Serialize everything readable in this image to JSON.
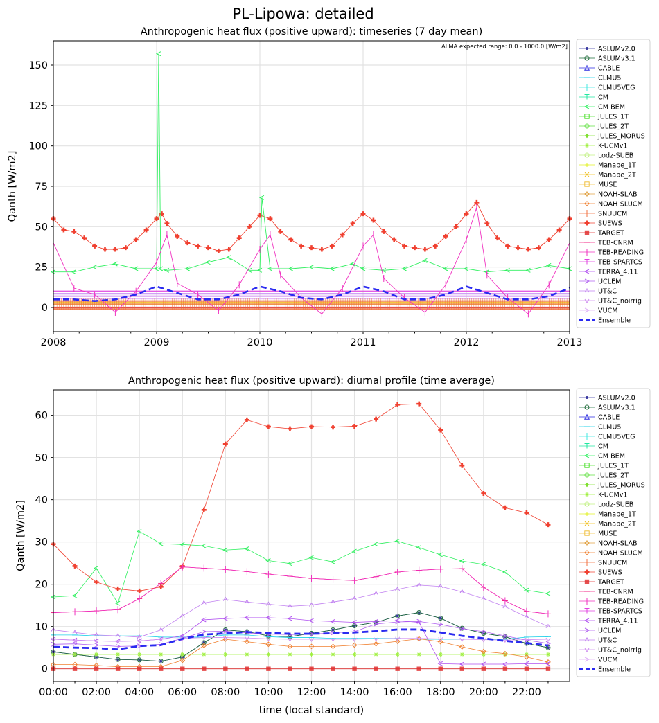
{
  "figure": {
    "title": "PL-Lipowa: detailed"
  },
  "models": [
    {
      "name": "ASLUMv2.0",
      "color": "#3a3aa0",
      "marker": "dot"
    },
    {
      "name": "ASLUMv3.1",
      "color": "#1e6b3a",
      "marker": "circle"
    },
    {
      "name": "CABLE",
      "color": "#2a2ae0",
      "marker": "triangle"
    },
    {
      "name": "CLMU5",
      "color": "#20d0e8",
      "marker": "hline"
    },
    {
      "name": "CLMU5VEG",
      "color": "#40e8e0",
      "marker": "vline"
    },
    {
      "name": "CM",
      "color": "#20e8a0",
      "marker": "tee"
    },
    {
      "name": "CM-BEM",
      "color": "#30f060",
      "marker": "lt"
    },
    {
      "name": "JULES_1T",
      "color": "#50e030",
      "marker": "square"
    },
    {
      "name": "JULES_2T",
      "color": "#60e040",
      "marker": "hexagon"
    },
    {
      "name": "JULES_MORUS",
      "color": "#80e030",
      "marker": "filled_diamond"
    },
    {
      "name": "K-UCMv1",
      "color": "#a0f040",
      "marker": "star"
    },
    {
      "name": "Lodz-SUEB",
      "color": "#c0f080",
      "marker": "hexagon"
    },
    {
      "name": "Manabe_1T",
      "color": "#e0f020",
      "marker": "plus"
    },
    {
      "name": "Manabe_2T",
      "color": "#f0c020",
      "marker": "x"
    },
    {
      "name": "MUSE",
      "color": "#f0c040",
      "marker": "square"
    },
    {
      "name": "NOAH-SLAB",
      "color": "#e0a040",
      "marker": "diamond"
    },
    {
      "name": "NOAH-SLUCM",
      "color": "#f08030",
      "marker": "diamond"
    },
    {
      "name": "SNUUCM",
      "color": "#f07040",
      "marker": "vline"
    },
    {
      "name": "SUEWS",
      "color": "#f04030",
      "marker": "cross"
    },
    {
      "name": "TARGET",
      "color": "#e03030",
      "marker": "xsquare"
    },
    {
      "name": "TEB-CNRM",
      "color": "#f02080",
      "marker": "hline"
    },
    {
      "name": "TEB-READING",
      "color": "#f030c0",
      "marker": "vline"
    },
    {
      "name": "TEB-SPARTCS",
      "color": "#e040e0",
      "marker": "tee"
    },
    {
      "name": "TERRA_4.11",
      "color": "#b050f0",
      "marker": "lt"
    },
    {
      "name": "UCLEM",
      "color": "#b060f0",
      "marker": "gt"
    },
    {
      "name": "UT&C",
      "color": "#c080f0",
      "marker": "caret"
    },
    {
      "name": "UT&C_noirrig",
      "color": "#d090f0",
      "marker": "caretdown"
    },
    {
      "name": "VUCM",
      "color": "#e0b0f8",
      "marker": "gt"
    },
    {
      "name": "Ensemble",
      "color": "#2a2af0",
      "marker": "dashed"
    }
  ],
  "top": {
    "title": "Anthropogenic heat flux (positive upward): timeseries (7 day mean)",
    "annotation": "ALMA expected range: 0.0 - 1000.0 [W/m2]",
    "ylabel": "Qanth [W/m2]",
    "xticks": [
      "2008",
      "2009",
      "2010",
      "2011",
      "2012",
      "2013"
    ],
    "yticks": [
      "0",
      "25",
      "50",
      "75",
      "100",
      "125",
      "150"
    ]
  },
  "bottom": {
    "title": "Anthropogenic heat flux (positive upward): diurnal profile (time average)",
    "ylabel": "Qanth [W/m2]",
    "xlabel": "time (local standard)",
    "xticks": [
      "00:00",
      "02:00",
      "04:00",
      "06:00",
      "08:00",
      "10:00",
      "12:00",
      "14:00",
      "16:00",
      "18:00",
      "20:00",
      "22:00"
    ],
    "yticks": [
      "0",
      "10",
      "20",
      "30",
      "40",
      "50",
      "60"
    ]
  },
  "chart_data": [
    {
      "type": "line",
      "title": "Anthropogenic heat flux (positive upward): timeseries (7 day mean)",
      "xlabel": "",
      "ylabel": "Qanth [W/m2]",
      "xlim": [
        2008,
        2013
      ],
      "ylim": [
        -15,
        165
      ],
      "grid": true,
      "legend": "outside-right",
      "series": [
        {
          "name": "SUEWS",
          "x": [
            2008.0,
            2008.1,
            2008.2,
            2008.3,
            2008.4,
            2008.5,
            2008.6,
            2008.7,
            2008.8,
            2008.9,
            2009.0,
            2009.05,
            2009.1,
            2009.2,
            2009.3,
            2009.4,
            2009.5,
            2009.6,
            2009.7,
            2009.8,
            2009.9,
            2010.0,
            2010.1,
            2010.2,
            2010.3,
            2010.4,
            2010.5,
            2010.6,
            2010.7,
            2010.8,
            2010.9,
            2011.0,
            2011.1,
            2011.2,
            2011.3,
            2011.4,
            2011.5,
            2011.6,
            2011.7,
            2011.8,
            2011.9,
            2012.0,
            2012.1,
            2012.2,
            2012.3,
            2012.4,
            2012.5,
            2012.6,
            2012.7,
            2012.8,
            2012.9,
            2013.0
          ],
          "values": [
            55,
            48,
            47,
            43,
            38,
            36,
            36,
            37,
            42,
            48,
            55,
            58,
            52,
            44,
            40,
            38,
            37,
            35,
            36,
            43,
            50,
            57,
            55,
            47,
            42,
            38,
            37,
            36,
            38,
            45,
            52,
            58,
            54,
            47,
            42,
            38,
            37,
            36,
            38,
            44,
            50,
            58,
            65,
            52,
            43,
            38,
            37,
            36,
            37,
            42,
            48,
            55
          ]
        },
        {
          "name": "CM-BEM",
          "x": [
            2008.0,
            2008.2,
            2008.4,
            2008.6,
            2008.8,
            2009.0,
            2009.02,
            2009.04,
            2009.1,
            2009.3,
            2009.5,
            2009.7,
            2009.9,
            2010.0,
            2010.02,
            2010.1,
            2010.3,
            2010.5,
            2010.7,
            2010.9,
            2011.0,
            2011.2,
            2011.4,
            2011.6,
            2011.8,
            2012.0,
            2012.2,
            2012.4,
            2012.6,
            2012.8,
            2013.0
          ],
          "values": [
            22,
            22,
            25,
            27,
            24,
            24,
            157,
            24,
            23,
            24,
            28,
            31,
            23,
            23,
            68,
            24,
            24,
            25,
            24,
            27,
            24,
            23,
            24,
            29,
            24,
            24,
            22,
            23,
            23,
            26,
            24
          ]
        },
        {
          "name": "TEB-READING",
          "x": [
            2008.0,
            2008.2,
            2008.4,
            2008.6,
            2008.8,
            2009.0,
            2009.1,
            2009.2,
            2009.4,
            2009.6,
            2009.8,
            2010.0,
            2010.1,
            2010.2,
            2010.4,
            2010.6,
            2010.8,
            2011.0,
            2011.1,
            2011.2,
            2011.4,
            2011.6,
            2011.8,
            2012.0,
            2012.1,
            2012.2,
            2012.4,
            2012.6,
            2012.8,
            2013.0
          ],
          "values": [
            40,
            12,
            8,
            -3,
            10,
            28,
            45,
            15,
            8,
            -2,
            14,
            36,
            45,
            20,
            6,
            -4,
            12,
            38,
            45,
            18,
            6,
            -3,
            14,
            42,
            62,
            20,
            6,
            -4,
            14,
            40
          ]
        },
        {
          "name": "Ensemble",
          "x": [
            2008.0,
            2008.2,
            2008.4,
            2008.6,
            2008.8,
            2009.0,
            2009.2,
            2009.4,
            2009.6,
            2009.8,
            2010.0,
            2010.2,
            2010.4,
            2010.6,
            2010.8,
            2011.0,
            2011.2,
            2011.4,
            2011.6,
            2011.8,
            2012.0,
            2012.2,
            2012.4,
            2012.6,
            2012.8,
            2013.0
          ],
          "values": [
            5,
            5,
            4,
            5,
            8,
            13,
            9,
            5,
            5,
            8,
            13,
            10,
            6,
            5,
            8,
            13,
            10,
            5,
            5,
            8,
            13,
            9,
            5,
            5,
            7,
            12
          ]
        }
      ]
    },
    {
      "type": "line",
      "title": "Anthropogenic heat flux (positive upward): diurnal profile (time average)",
      "xlabel": "time (local standard)",
      "ylabel": "Qanth [W/m2]",
      "x": [
        0,
        1,
        2,
        3,
        4,
        5,
        6,
        7,
        8,
        9,
        10,
        11,
        12,
        13,
        14,
        15,
        16,
        17,
        18,
        19,
        20,
        21,
        22,
        23
      ],
      "xlim": [
        0,
        24
      ],
      "ylim": [
        -3,
        66
      ],
      "grid": true,
      "legend": "outside-right",
      "series": [
        {
          "name": "ASLUMv2.0",
          "values": [
            4,
            3.4,
            2.8,
            2.2,
            2.1,
            1.8,
            2.8,
            6.2,
            9.2,
            8.8,
            7.8,
            7.6,
            8.4,
            9.2,
            10.2,
            11,
            12.5,
            13.3,
            12,
            9.6,
            8.4,
            7.6,
            6,
            5
          ]
        },
        {
          "name": "ASLUMv3.1",
          "values": [
            4,
            3.4,
            2.8,
            2.2,
            2.1,
            1.8,
            2.8,
            6.2,
            9.2,
            8.8,
            7.8,
            7.6,
            8.4,
            9.2,
            10.2,
            11,
            12.5,
            13.3,
            12,
            9.6,
            8.4,
            7.6,
            6,
            5
          ]
        },
        {
          "name": "CLMU5",
          "values": [
            8,
            8,
            7.8,
            7.8,
            7.8,
            7.5,
            7.5,
            7.5,
            8,
            8,
            7.6,
            7.4,
            7.4,
            7.2,
            7.2,
            7.2,
            7.2,
            7,
            7,
            7,
            7,
            7,
            7.5,
            7.6
          ]
        },
        {
          "name": "CM-BEM",
          "values": [
            17,
            17.3,
            23.8,
            15.5,
            32.5,
            29.6,
            29.4,
            29.1,
            28.1,
            28.4,
            25.6,
            24.9,
            26.3,
            25.3,
            27.8,
            29.5,
            30.2,
            28.7,
            27,
            25.5,
            24.7,
            22.9,
            18.6,
            17.8
          ]
        },
        {
          "name": "K-UCMv1",
          "values": [
            3.4,
            3.4,
            3.4,
            3.4,
            3.4,
            3.4,
            3.4,
            3.4,
            3.4,
            3.4,
            3.4,
            3.4,
            3.4,
            3.4,
            3.4,
            3.4,
            3.4,
            3.4,
            3.4,
            3.4,
            3.4,
            3.4,
            3.4,
            3.4
          ]
        },
        {
          "name": "NOAH-SLUCM",
          "values": [
            1,
            1,
            0.8,
            0.5,
            0.5,
            0.5,
            2,
            5.5,
            7,
            6.4,
            5.8,
            5.3,
            5.3,
            5.3,
            5.6,
            5.9,
            6.5,
            7.1,
            6.4,
            5.2,
            4.1,
            3.6,
            2.8,
            1.6
          ]
        },
        {
          "name": "SUEWS",
          "values": [
            29.5,
            24.3,
            20.5,
            18.9,
            18.4,
            19.4,
            24.3,
            37.6,
            53.2,
            58.9,
            57.3,
            56.8,
            57.3,
            57.2,
            57.4,
            59.1,
            62.5,
            62.7,
            56.5,
            48.1,
            41.5,
            38.1,
            36.9,
            34.1
          ]
        },
        {
          "name": "TARGET",
          "values": [
            0,
            0,
            0,
            0,
            0,
            0,
            0,
            0,
            0,
            0,
            0,
            0,
            0,
            0,
            0,
            0,
            0,
            0,
            0,
            0,
            0,
            0,
            0,
            0
          ]
        },
        {
          "name": "TEB-CNRM",
          "values": [
            13.3,
            13.5,
            13.7,
            14,
            16.6,
            20.2,
            24.1,
            23.8,
            23.5,
            23,
            22.4,
            21.9,
            21.4,
            21.1,
            20.9,
            21.8,
            22.9,
            23.3,
            23.6,
            23.7,
            19.3,
            16.1,
            13.6,
            13
          ]
        },
        {
          "name": "TEB-READING",
          "values": [
            13.3,
            13.5,
            13.7,
            14,
            16.6,
            20.2,
            24.1,
            23.8,
            23.5,
            23,
            22.4,
            21.9,
            21.4,
            21.1,
            20.9,
            21.8,
            22.9,
            23.3,
            23.6,
            23.7,
            19.3,
            16.1,
            13.6,
            13
          ]
        },
        {
          "name": "TERRA_4.11",
          "values": [
            7,
            6.8,
            6.6,
            6.5,
            6.6,
            7,
            7.8,
            11.6,
            11.9,
            12.1,
            12.1,
            11.9,
            11.4,
            11.2,
            11,
            11.2,
            11.4,
            11,
            1.2,
            1.1,
            1.1,
            1.1,
            1.2,
            1.2
          ]
        },
        {
          "name": "UCLEM",
          "values": [
            5.8,
            5.9,
            5.6,
            5.3,
            5.4,
            5.8,
            7.2,
            8.8,
            8.9,
            8.5,
            8.2,
            8.1,
            8.2,
            8.5,
            8.8,
            10.6,
            11.1,
            11.2,
            10.5,
            9.5,
            8.8,
            7.8,
            6.8,
            6
          ]
        },
        {
          "name": "UT&C",
          "values": [
            9.2,
            8.6,
            8,
            7.8,
            7.5,
            9.2,
            12.5,
            15.6,
            16.4,
            15.8,
            15.3,
            14.8,
            15.1,
            15.8,
            16.6,
            17.8,
            18.8,
            19.8,
            19.5,
            18.2,
            16.6,
            14.7,
            12.3,
            10
          ]
        },
        {
          "name": "UT&C_noirrig",
          "values": [
            7,
            6.8,
            6.6,
            6.5,
            6.6,
            7,
            7.2,
            7.4,
            7.4,
            7.3,
            7.1,
            7,
            7,
            7,
            7,
            7.1,
            7.2,
            7.2,
            7.1,
            7,
            6.9,
            6.8,
            6.9,
            7
          ]
        },
        {
          "name": "Ensemble",
          "values": [
            5.2,
            5,
            4.9,
            4.6,
            5.4,
            5.6,
            7.1,
            8.1,
            8.4,
            8.7,
            8.5,
            8.3,
            8.3,
            8.4,
            8.6,
            8.9,
            9.3,
            9.3,
            8.6,
            7.8,
            7.2,
            6.6,
            6.1,
            5.5
          ]
        }
      ]
    }
  ]
}
